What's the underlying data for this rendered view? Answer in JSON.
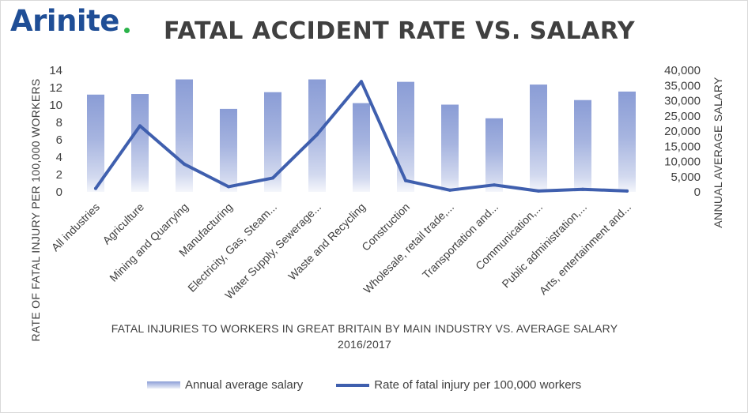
{
  "brand": {
    "logo_text": "Arinite"
  },
  "colors": {
    "bar": "#8094d2",
    "line": "#3f5fae",
    "text": "#404040",
    "logo": "#1f4e96",
    "logo_dot": "#2bb34a"
  },
  "chart_data": {
    "type": "bar",
    "title": "FATAL ACCIDENT RATE VS. SALARY",
    "xlabel": "FATAL INJURIES TO WORKERS IN GREAT BRITAIN BY MAIN INDUSTRY VS. AVERAGE SALARY 2016/2017",
    "xlabel_line1": "FATAL INJURIES TO WORKERS IN GREAT BRITAIN BY MAIN INDUSTRY VS. AVERAGE SALARY",
    "xlabel_line2": "2016/2017",
    "ylabel": "RATE OF FATAL INJURY PER 100,000 WORKERS",
    "y2label": "ANNUAL AVERAGE SALARY",
    "ylim": [
      0,
      14
    ],
    "y2lim": [
      0,
      40000
    ],
    "yticks": [
      "0",
      "2",
      "4",
      "6",
      "8",
      "10",
      "12",
      "14"
    ],
    "y2ticks": [
      "0",
      "5,000",
      "10,000",
      "15,000",
      "20,000",
      "25,000",
      "30,000",
      "35,000",
      "40,000"
    ],
    "categories": [
      "All industries",
      "Agriculture",
      "Mining and Quarrying",
      "Manufacturing",
      "Electricity, Gas, Steam...",
      "Water Supply, Sewerage...",
      "Waste and Recycling",
      "Construction",
      "Wholesale, retail trade,...",
      "Transportation and...",
      "Communication,...",
      "Public administration,...",
      "Arts, entertainment and..."
    ],
    "series": [
      {
        "name": "Annual average salary",
        "type": "bar",
        "axis": "secondary",
        "values": [
          32000,
          32200,
          37000,
          27300,
          32800,
          37000,
          29200,
          36200,
          28700,
          24200,
          35300,
          30200,
          33000
        ]
      },
      {
        "name": "Rate of fatal injury per 100,000 workers",
        "type": "line",
        "axis": "primary",
        "values": [
          0.4,
          7.6,
          3.2,
          0.6,
          1.6,
          6.6,
          12.7,
          1.3,
          0.2,
          0.8,
          0.1,
          0.3,
          0.1
        ]
      }
    ],
    "legend": [
      "Annual average salary",
      "Rate of fatal injury per 100,000 workers"
    ],
    "legend_position": "bottom",
    "grid": false
  }
}
